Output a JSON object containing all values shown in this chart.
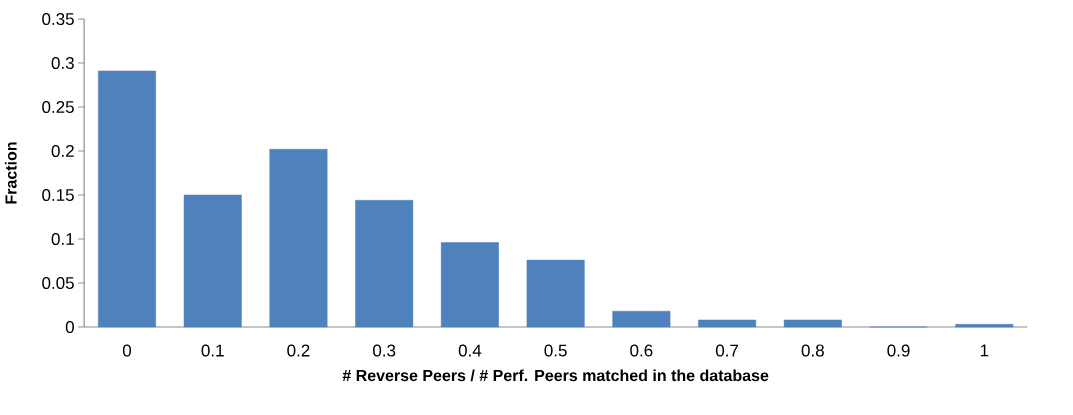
{
  "chart_data": {
    "type": "bar",
    "xlabel": "# Reverse Peers / # Perf. Peers matched in the database",
    "ylabel": "Fraction",
    "categories": [
      "0",
      "0.1",
      "0.2",
      "0.3",
      "0.4",
      "0.5",
      "0.6",
      "0.7",
      "0.8",
      "0.9",
      "1"
    ],
    "values": [
      0.291,
      0.15,
      0.202,
      0.144,
      0.096,
      0.076,
      0.018,
      0.008,
      0.008,
      0,
      0.003
    ],
    "color": "#4f81bd",
    "ylim": [
      0,
      0.35
    ],
    "yticks": [
      0,
      0.05,
      0.1,
      0.15,
      0.2,
      0.25,
      0.3,
      0.35
    ],
    "grid": false
  }
}
